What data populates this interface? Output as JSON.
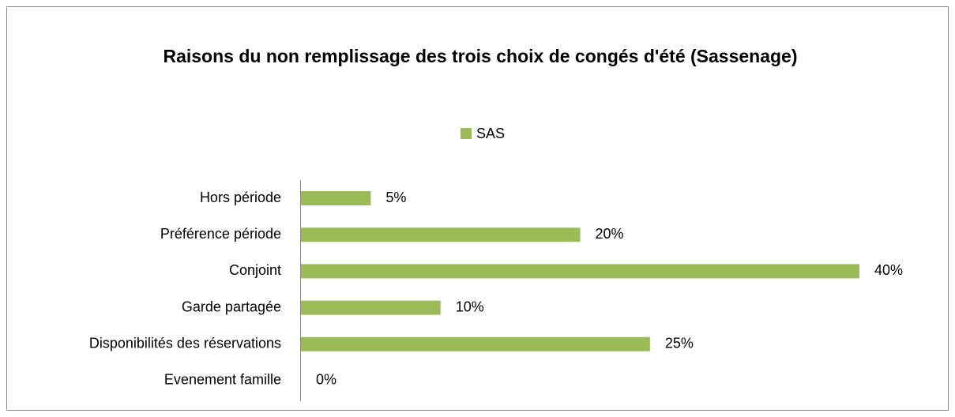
{
  "chart_data": {
    "type": "hbar",
    "title": "Raisons du non remplissage des trois choix de congés d'été (Sassenage)",
    "categories": [
      "Hors période",
      "Préférence période",
      "Conjoint",
      "Garde partagée",
      "Disponibilités des réservations",
      "Evenement famille"
    ],
    "series": [
      {
        "name": "SAS",
        "color": "#9bbb59",
        "values": [
          5,
          20,
          40,
          10,
          25,
          0
        ],
        "value_labels": [
          "5%",
          "20%",
          "40%",
          "10%",
          "25%",
          "0%"
        ]
      }
    ],
    "xlim": [
      0,
      40
    ],
    "legend": "top"
  }
}
